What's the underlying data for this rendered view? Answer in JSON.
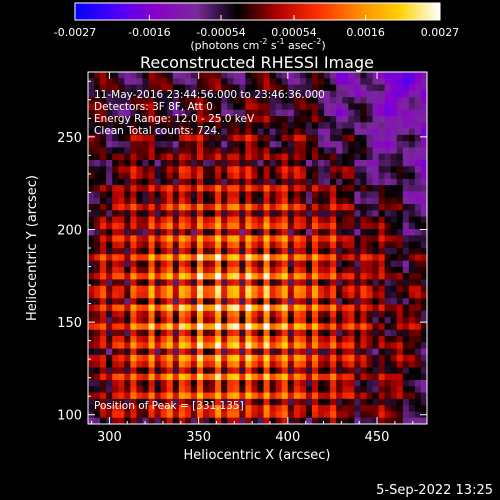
{
  "chart_data": {
    "type": "heatmap",
    "title": "Reconstructed RHESSI Image",
    "xlabel": "Heliocentric X (arcsec)",
    "ylabel": "Heliocentric Y (arcsec)",
    "xlim": [
      288,
      478
    ],
    "ylim": [
      95,
      285
    ],
    "xticks": [
      300,
      350,
      400,
      450
    ],
    "yticks": [
      100,
      150,
      200,
      250
    ],
    "grid": false,
    "colorbar": {
      "position": "top",
      "min": -0.0027,
      "max": 0.0027,
      "ticks": [
        "-0.0027",
        "-0.0016",
        "-0.00054",
        "0.00054",
        "0.0016",
        "0.0027"
      ],
      "units_text": "(photons cm",
      "units_exp1": "-2",
      "units_mid": " s",
      "units_exp2": "-1",
      "units_mid2": " asec",
      "units_exp3": "-2",
      "units_end": ")",
      "colors": [
        "#0000ff",
        "#4a00ff",
        "#8a00c8",
        "#7a2a9a",
        "#000000",
        "#b00000",
        "#ff3000",
        "#ff8a00",
        "#ffd000",
        "#ffffff"
      ]
    },
    "peak": {
      "x": 331,
      "y": 135
    },
    "annotations": [
      "11-May-2016 23:44:56.000 to 23:46:36.000",
      "Detectors: 3F 8F, Att 0",
      "Energy Range: 12.0 - 25.0 keV",
      "Clean    Total counts: 724."
    ],
    "peak_label": "Position of Peak = [331,135]"
  },
  "footer": {
    "date": "5-Sep-2022 13:25"
  }
}
